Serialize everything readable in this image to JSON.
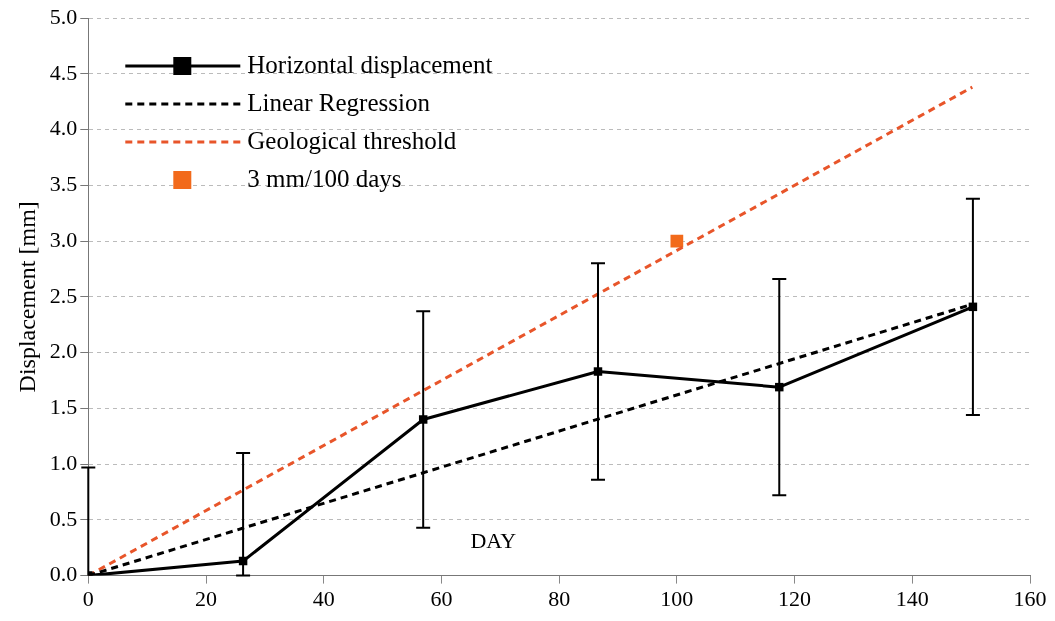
{
  "chart_data": {
    "type": "line",
    "xlabel": "DAY",
    "ylabel": "Displacement [mm]",
    "xlim": [
      0,
      160
    ],
    "xticks": [
      0,
      20,
      40,
      60,
      80,
      100,
      120,
      140,
      160
    ],
    "ylim": [
      0,
      5
    ],
    "yticks": [
      {
        "value": 0,
        "label": "0.0"
      },
      {
        "value": 0.5,
        "label": "0.5"
      },
      {
        "value": 1,
        "label": "1.0"
      },
      {
        "value": 1.5,
        "label": "1.5"
      },
      {
        "value": 2,
        "label": "2.0"
      },
      {
        "value": 2.5,
        "label": "2.5"
      },
      {
        "value": 3,
        "label": "3.0"
      },
      {
        "value": 3.5,
        "label": "3.5"
      },
      {
        "value": 4,
        "label": "4.0"
      },
      {
        "value": 4.5,
        "label": "4.5"
      },
      {
        "value": 5,
        "label": "5.0"
      }
    ],
    "grid": "y",
    "legend": "top left",
    "series": [
      {
        "name": "Horizontal displacement",
        "color": "#000000",
        "marker": "square",
        "line_style": "solid",
        "x": [
          0,
          26.3,
          56.9,
          86.6,
          117.4,
          150.3
        ],
        "values": [
          0,
          0.13,
          1.4,
          1.83,
          1.69,
          2.41
        ],
        "errors": [
          [
            0,
            0.97
          ],
          [
            0,
            1.1
          ],
          0.97,
          0.97,
          0.97,
          0.97
        ]
      },
      {
        "name": "Linear Regression",
        "color": "#000000",
        "marker": "none",
        "line_style": "dashed",
        "x": [
          0,
          150
        ],
        "values": [
          0,
          2.43
        ]
      },
      {
        "name": "Geological threshold",
        "color": "#e8552a",
        "marker": "none",
        "line_style": "dashed",
        "x": [
          0,
          150.2
        ],
        "values": [
          0,
          4.38
        ]
      },
      {
        "name": "3 mm/100 days",
        "type": "scatter",
        "color": "#f26a1b",
        "marker": "square",
        "x": [
          100
        ],
        "values": [
          3
        ]
      }
    ]
  }
}
